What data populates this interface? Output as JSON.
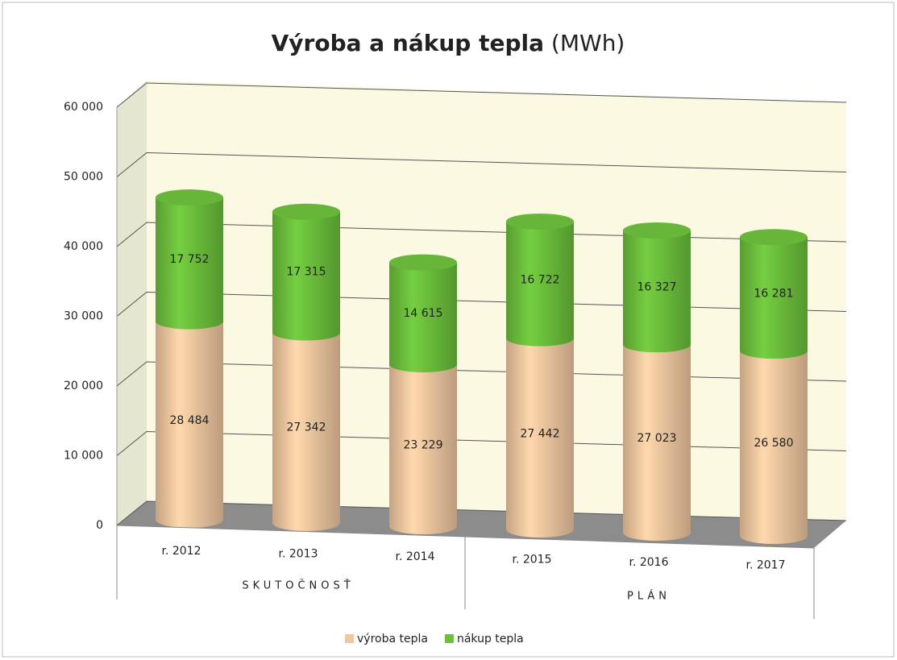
{
  "chart_data": {
    "type": "bar3d_stacked",
    "title": "Výroba a nákup tepla",
    "title_unit": "(MWh)",
    "categories": [
      "r. 2012",
      "r. 2013",
      "r. 2014",
      "r. 2015",
      "r. 2016",
      "r. 2017"
    ],
    "groups": [
      {
        "name": "SKUTOČNOSŤ",
        "span": [
          0,
          2
        ]
      },
      {
        "name": "PLÁN",
        "span": [
          3,
          5
        ]
      }
    ],
    "series": [
      {
        "name": "výroba tepla",
        "color": "#f0c8a0",
        "values": [
          28484,
          27342,
          23229,
          27442,
          27023,
          26580
        ],
        "value_labels": [
          "28 484",
          "27 342",
          "23 229",
          "27 442",
          "27 023",
          "26 580"
        ]
      },
      {
        "name": "nákup tepla",
        "color": "#6cc03c",
        "values": [
          17752,
          17315,
          14615,
          16722,
          16327,
          16281
        ],
        "value_labels": [
          "17 752",
          "17 315",
          "14 615",
          "16 722",
          "16 327",
          "16 281"
        ]
      }
    ],
    "ylim": [
      0,
      60000
    ],
    "yticks": [
      0,
      {
        "value": 10000,
        "label": "10 000"
      },
      {
        "value": 20000,
        "label": "20 000"
      },
      {
        "value": 30000,
        "label": "30 000"
      },
      {
        "value": 40000,
        "label": "40 000"
      },
      {
        "value": 50000,
        "label": "50 000"
      },
      {
        "value": 60000,
        "label": "60 000"
      }
    ],
    "grid": true,
    "legend": "bottom"
  }
}
